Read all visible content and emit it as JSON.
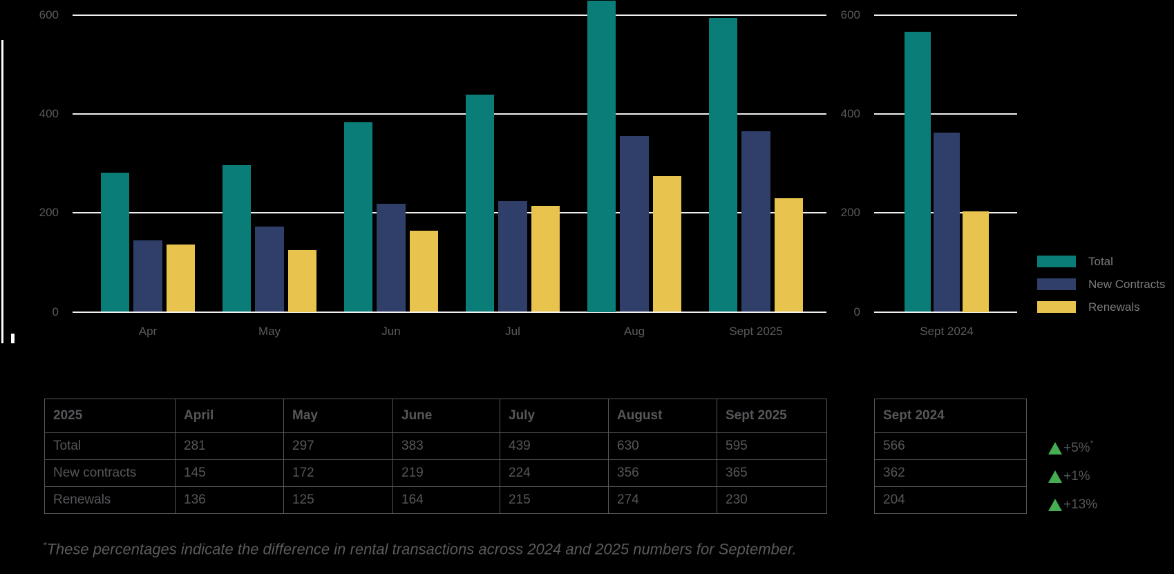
{
  "colors": {
    "background": "#000000",
    "teal": "#0b7d78",
    "navy": "#2f3f6a",
    "yellow": "#e8c44f",
    "green": "#47ad52",
    "gridline": "#f2f0ef",
    "axis_text": "#5a5b5e",
    "table_text": "#56575a",
    "legend_text": "#7a7b7e"
  },
  "chart_data": [
    {
      "type": "bar",
      "title": "",
      "categories": [
        "Apr",
        "May",
        "Jun",
        "Jul",
        "Aug",
        "Sept 2025"
      ],
      "series": [
        {
          "name": "Total",
          "color": "#0b7d78",
          "values": [
            281,
            297,
            383,
            439,
            630,
            595
          ]
        },
        {
          "name": "New Contracts",
          "color": "#2f3f6a",
          "values": [
            145,
            172,
            219,
            224,
            356,
            365
          ]
        },
        {
          "name": "Renewals",
          "color": "#e8c44f",
          "values": [
            136,
            125,
            164,
            215,
            274,
            230
          ]
        }
      ],
      "ylim": [
        0,
        600
      ],
      "yticks": [
        0,
        200,
        400,
        600
      ],
      "grid": true,
      "legend_position": "right"
    },
    {
      "type": "bar",
      "title": "",
      "categories": [
        "Sept 2024"
      ],
      "series": [
        {
          "name": "Total",
          "color": "#0b7d78",
          "values": [
            566
          ]
        },
        {
          "name": "New Contracts",
          "color": "#2f3f6a",
          "values": [
            362
          ]
        },
        {
          "name": "Renewals",
          "color": "#e8c44f",
          "values": [
            204
          ]
        }
      ],
      "ylim": [
        0,
        600
      ],
      "yticks": [
        0,
        200,
        400,
        600
      ],
      "grid": true
    }
  ],
  "legend": {
    "items": [
      {
        "label": "Total",
        "color": "#0b7d78"
      },
      {
        "label": "New Contracts",
        "color": "#2f3f6a"
      },
      {
        "label": "Renewals",
        "color": "#e8c44f"
      }
    ]
  },
  "table": {
    "headers": [
      "2025",
      "April",
      "May",
      "June",
      "July",
      "August",
      "Sept 2025"
    ],
    "rows": [
      {
        "label": "Total",
        "values": [
          281,
          297,
          383,
          439,
          630,
          595
        ]
      },
      {
        "label": "New contracts",
        "values": [
          145,
          172,
          219,
          224,
          356,
          365
        ]
      },
      {
        "label": "Renewals",
        "values": [
          136,
          125,
          164,
          215,
          274,
          230
        ]
      }
    ]
  },
  "comparison_table": {
    "header": "Sept 2024",
    "values": [
      566,
      362,
      204
    ]
  },
  "deltas": [
    {
      "value": "+5%",
      "sup": "*"
    },
    {
      "value": "+1%",
      "sup": ""
    },
    {
      "value": "+13%",
      "sup": ""
    }
  ],
  "footnote": {
    "asterisk": "*",
    "text": "These percentages indicate the difference in rental transactions across 2024 and 2025 numbers for September."
  }
}
